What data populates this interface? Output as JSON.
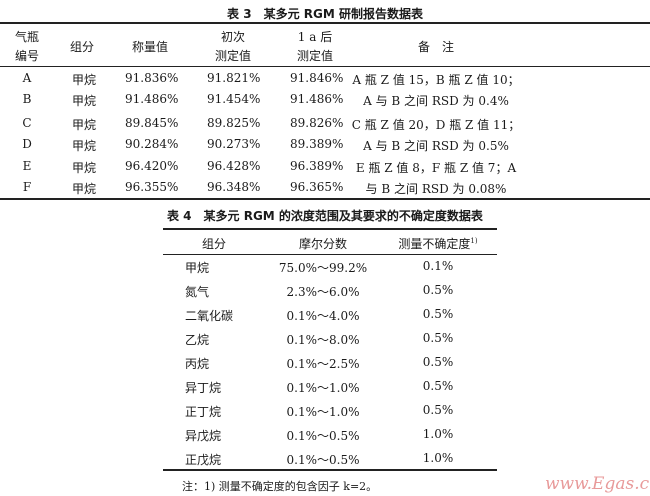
{
  "table3": {
    "title": "表 3　某多元 RGM 研制报告数据表",
    "headers": {
      "bottle_l1": "气瓶",
      "bottle_l2": "编号",
      "component": "组分",
      "weighed": "称量值",
      "initial_l1": "初次",
      "initial_l2": "测定值",
      "after_l1": "1 a 后",
      "after_l2": "测定值",
      "remarks": "备　注"
    },
    "rows": [
      {
        "bottle": "A",
        "component": "甲烷",
        "weighed": "91.836%",
        "initial": "91.821%",
        "after": "91.846%",
        "remark": "A 瓶 Z 值 15，B 瓶 Z 值 10；"
      },
      {
        "bottle": "B",
        "component": "甲烷",
        "weighed": "91.486%",
        "initial": "91.454%",
        "after": "91.486%",
        "remark": "A 与 B 之间 RSD 为 0.4%"
      },
      {
        "bottle": "C",
        "component": "甲烷",
        "weighed": "89.845%",
        "initial": "89.825%",
        "after": "89.826%",
        "remark": "C 瓶 Z 值 20，D 瓶 Z 值 11；"
      },
      {
        "bottle": "D",
        "component": "甲烷",
        "weighed": "90.284%",
        "initial": "90.273%",
        "after": "89.389%",
        "remark": "A 与 B 之间 RSD 为 0.5%"
      },
      {
        "bottle": "E",
        "component": "甲烷",
        "weighed": "96.420%",
        "initial": "96.428%",
        "after": "96.389%",
        "remark": "E 瓶 Z 值 8，F 瓶 Z 值 7；A"
      },
      {
        "bottle": "F",
        "component": "甲烷",
        "weighed": "96.355%",
        "initial": "96.348%",
        "after": "96.365%",
        "remark": "与 B 之间 RSD 为 0.08%"
      }
    ]
  },
  "table4": {
    "title": "表 4　某多元 RGM 的浓度范围及其要求的不确定度数据表",
    "headers": {
      "component": "组分",
      "mole_fraction": "摩尔分数",
      "uncertainty": "测量不确定度",
      "uncertainty_sup": "1)"
    },
    "rows": [
      {
        "component": "甲烷",
        "range": "75.0%～99.2%",
        "u": "0.1%"
      },
      {
        "component": "氮气",
        "range": "2.3%～6.0%",
        "u": "0.5%"
      },
      {
        "component": "二氧化碳",
        "range": "0.1%～4.0%",
        "u": "0.5%"
      },
      {
        "component": "乙烷",
        "range": "0.1%～8.0%",
        "u": "0.5%"
      },
      {
        "component": "丙烷",
        "range": "0.1%～2.5%",
        "u": "0.5%"
      },
      {
        "component": "异丁烷",
        "range": "0.1%～1.0%",
        "u": "0.5%"
      },
      {
        "component": "正丁烷",
        "range": "0.1%～1.0%",
        "u": "0.5%"
      },
      {
        "component": "异戊烷",
        "range": "0.1%～0.5%",
        "u": "1.0%"
      },
      {
        "component": "正戊烷",
        "range": "0.1%～0.5%",
        "u": "1.0%"
      }
    ],
    "note": "注：1) 测量不确定度的包含因子 k=2。"
  },
  "watermark": "www.Egas.cn"
}
